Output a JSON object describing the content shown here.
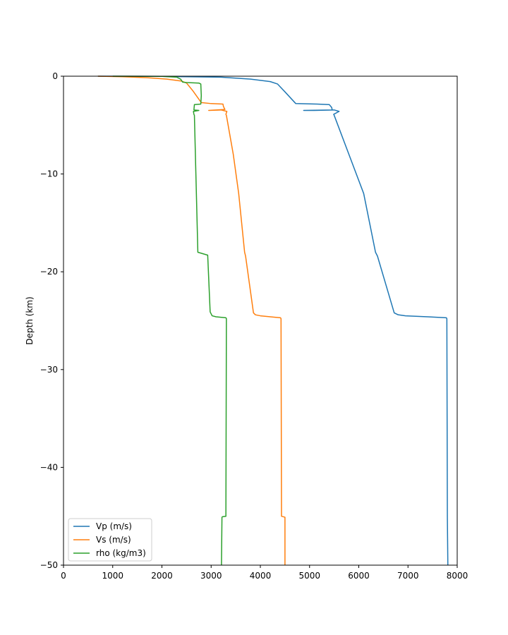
{
  "chart_data": {
    "type": "line",
    "title": "",
    "xlabel": "",
    "ylabel": "Depth (km)",
    "xlim": [
      0,
      8000
    ],
    "ylim": [
      -50,
      0
    ],
    "xticks": [
      0,
      1000,
      2000,
      3000,
      4000,
      5000,
      6000,
      7000,
      8000
    ],
    "yticks": [
      0,
      -10,
      -20,
      -30,
      -40,
      -50
    ],
    "grid": false,
    "legend_position": "lower-left",
    "series": [
      {
        "name": "Vp (m/s)",
        "color": "#1f77b4",
        "points": [
          [
            700,
            0
          ],
          [
            2000,
            -0.02
          ],
          [
            3200,
            -0.1
          ],
          [
            3800,
            -0.3
          ],
          [
            4200,
            -0.55
          ],
          [
            4350,
            -0.8
          ],
          [
            4500,
            -1.6
          ],
          [
            4720,
            -2.8
          ],
          [
            5150,
            -2.85
          ],
          [
            5400,
            -2.9
          ],
          [
            5450,
            -3.2
          ],
          [
            5460,
            -3.45
          ],
          [
            4880,
            -3.5
          ],
          [
            5100,
            -3.5
          ],
          [
            5500,
            -3.45
          ],
          [
            5600,
            -3.6
          ],
          [
            5490,
            -3.9
          ],
          [
            5500,
            -4.0
          ],
          [
            5800,
            -8.0
          ],
          [
            6100,
            -12.0
          ],
          [
            6340,
            -18.0
          ],
          [
            6380,
            -18.4
          ],
          [
            6720,
            -24.2
          ],
          [
            6800,
            -24.4
          ],
          [
            6950,
            -24.5
          ],
          [
            7400,
            -24.6
          ],
          [
            7780,
            -24.7
          ],
          [
            7790,
            -24.8
          ],
          [
            7800,
            -45.0
          ],
          [
            7810,
            -50.0
          ]
        ]
      },
      {
        "name": "Vs (m/s)",
        "color": "#ff7f0e",
        "points": [
          [
            700,
            0
          ],
          [
            1200,
            -0.05
          ],
          [
            1700,
            -0.15
          ],
          [
            2100,
            -0.3
          ],
          [
            2400,
            -0.5
          ],
          [
            2500,
            -0.7
          ],
          [
            2630,
            -1.5
          ],
          [
            2800,
            -2.7
          ],
          [
            3000,
            -2.8
          ],
          [
            3240,
            -2.85
          ],
          [
            3250,
            -3.1
          ],
          [
            3280,
            -3.4
          ],
          [
            2950,
            -3.5
          ],
          [
            3200,
            -3.45
          ],
          [
            3320,
            -3.6
          ],
          [
            3300,
            -3.9
          ],
          [
            3310,
            -4.0
          ],
          [
            3450,
            -8.0
          ],
          [
            3560,
            -12.0
          ],
          [
            3680,
            -18.0
          ],
          [
            3700,
            -18.4
          ],
          [
            3860,
            -24.2
          ],
          [
            3900,
            -24.4
          ],
          [
            4000,
            -24.5
          ],
          [
            4200,
            -24.6
          ],
          [
            4410,
            -24.7
          ],
          [
            4420,
            -24.8
          ],
          [
            4430,
            -45.0
          ],
          [
            4500,
            -45.1
          ],
          [
            4500,
            -50.0
          ]
        ]
      },
      {
        "name": "rho (kg/m3)",
        "color": "#2ca02c",
        "points": [
          [
            1000,
            0
          ],
          [
            1600,
            -0.01
          ],
          [
            2000,
            -0.02
          ],
          [
            2300,
            -0.1
          ],
          [
            2380,
            -0.3
          ],
          [
            2420,
            -0.6
          ],
          [
            2500,
            -0.65
          ],
          [
            2750,
            -0.7
          ],
          [
            2790,
            -0.8
          ],
          [
            2800,
            -2.0
          ],
          [
            2790,
            -2.85
          ],
          [
            2660,
            -2.9
          ],
          [
            2650,
            -3.45
          ],
          [
            2750,
            -3.5
          ],
          [
            2640,
            -3.6
          ],
          [
            2650,
            -3.9
          ],
          [
            2660,
            -4.0
          ],
          [
            2690,
            -10.0
          ],
          [
            2730,
            -18.0
          ],
          [
            2930,
            -18.3
          ],
          [
            2980,
            -24.1
          ],
          [
            3020,
            -24.5
          ],
          [
            3100,
            -24.6
          ],
          [
            3300,
            -24.7
          ],
          [
            3310,
            -24.8
          ],
          [
            3300,
            -45.0
          ],
          [
            3230,
            -45.05
          ],
          [
            3220,
            -45.1
          ],
          [
            3210,
            -50.0
          ]
        ]
      }
    ]
  }
}
